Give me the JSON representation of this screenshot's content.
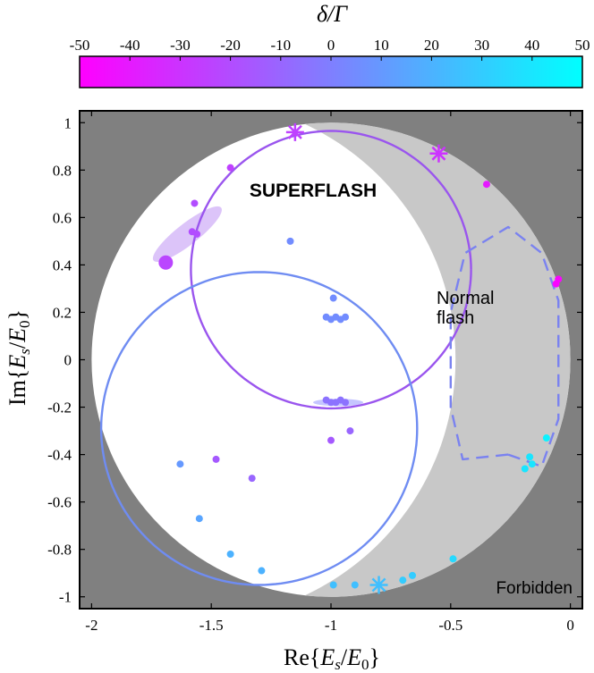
{
  "chart_data": {
    "type": "scatter",
    "xlabel": "Re{E_s/E_0}",
    "ylabel": "Im{E_s/E_0}",
    "xlim": [
      -2.05,
      0.05
    ],
    "ylim": [
      -1.05,
      1.05
    ],
    "xticks": [
      -2,
      -1.5,
      -1,
      -0.5,
      0
    ],
    "xtick_labels": [
      "-2",
      "-1.5",
      "-1",
      "-0.5",
      "0"
    ],
    "yticks": [
      1,
      0.8,
      0.6,
      0.4,
      0.2,
      0,
      -0.2,
      -0.4,
      -0.6,
      -0.8,
      -1
    ],
    "ytick_labels": [
      "1",
      "0.8",
      "0.6",
      "0.4",
      "0.2",
      "0",
      "-0.2",
      "-0.4",
      "-0.6",
      "-0.8",
      "-1"
    ],
    "colorbar": {
      "label": "δ/Γ",
      "ticks": [
        -50,
        -40,
        -30,
        -20,
        -10,
        0,
        10,
        20,
        30,
        40,
        50
      ],
      "tick_labels": [
        "-50",
        "-40",
        "-30",
        "-20",
        "-10",
        "0",
        "10",
        "20",
        "30",
        "40",
        "50"
      ],
      "colors": [
        "#ff00ff",
        "#7f7fff",
        "#00ffff"
      ]
    },
    "regions": [
      {
        "name": "Forbidden",
        "label": "Forbidden",
        "color": "#808080"
      },
      {
        "name": "Normal flash",
        "label_line1": "Normal",
        "label_line2": "flash",
        "color": "#c8c8c8"
      },
      {
        "name": "SUPERFLASH",
        "label": "SUPERFLASH",
        "color": "#ffffff"
      }
    ],
    "curves": [
      {
        "name": "purple circle",
        "color": "#9a55ee",
        "center": [
          -1.0,
          0.38
        ],
        "radius": 0.585
      },
      {
        "name": "blue circle",
        "color": "#6f8cf2",
        "center": [
          -1.3,
          -0.29
        ],
        "radius": 0.66
      },
      {
        "name": "dashed loop",
        "color": "#7a82f0",
        "points": [
          [
            -0.26,
            -0.4
          ],
          [
            -0.12,
            -0.45
          ],
          [
            -0.05,
            -0.25
          ],
          [
            -0.05,
            0.25
          ],
          [
            -0.12,
            0.45
          ],
          [
            -0.26,
            0.56
          ],
          [
            -0.44,
            0.45
          ],
          [
            -0.5,
            0.2
          ],
          [
            -0.5,
            -0.2
          ],
          [
            -0.45,
            -0.42
          ],
          [
            -0.26,
            -0.4
          ]
        ]
      }
    ],
    "points": [
      {
        "x": -1.42,
        "y": 0.81,
        "delta": -25
      },
      {
        "x": -1.57,
        "y": 0.66,
        "delta": -20
      },
      {
        "x": -1.58,
        "y": 0.54,
        "delta": -20
      },
      {
        "x": -1.56,
        "y": 0.53,
        "delta": -20
      },
      {
        "x": -1.69,
        "y": 0.41,
        "delta": -23,
        "size": "large"
      },
      {
        "x": -1.17,
        "y": 0.5,
        "delta": 5
      },
      {
        "x": -0.99,
        "y": 0.26,
        "delta": 5
      },
      {
        "x": -1.02,
        "y": 0.18,
        "delta": 5
      },
      {
        "x": -1.0,
        "y": 0.17,
        "delta": 5
      },
      {
        "x": -0.98,
        "y": 0.18,
        "delta": 5
      },
      {
        "x": -0.96,
        "y": 0.17,
        "delta": 5
      },
      {
        "x": -0.94,
        "y": 0.18,
        "delta": 5
      },
      {
        "x": -1.02,
        "y": -0.17,
        "delta": -5
      },
      {
        "x": -1.0,
        "y": -0.18,
        "delta": -5
      },
      {
        "x": -0.98,
        "y": -0.18,
        "delta": -5
      },
      {
        "x": -0.96,
        "y": -0.17,
        "delta": -5
      },
      {
        "x": -0.94,
        "y": -0.18,
        "delta": -5
      },
      {
        "x": -0.92,
        "y": -0.3,
        "delta": -10
      },
      {
        "x": -1.0,
        "y": -0.34,
        "delta": -15
      },
      {
        "x": -1.48,
        "y": -0.42,
        "delta": -15
      },
      {
        "x": -1.33,
        "y": -0.5,
        "delta": -10
      },
      {
        "x": -1.63,
        "y": -0.44,
        "delta": 10
      },
      {
        "x": -1.55,
        "y": -0.67,
        "delta": 15
      },
      {
        "x": -1.42,
        "y": -0.82,
        "delta": 20
      },
      {
        "x": -1.29,
        "y": -0.89,
        "delta": 20
      },
      {
        "x": -0.99,
        "y": -0.95,
        "delta": 25
      },
      {
        "x": -0.9,
        "y": -0.95,
        "delta": 25
      },
      {
        "x": -0.7,
        "y": -0.93,
        "delta": 30
      },
      {
        "x": -0.66,
        "y": -0.91,
        "delta": 30
      },
      {
        "x": -0.49,
        "y": -0.84,
        "delta": 35
      },
      {
        "x": -0.19,
        "y": -0.46,
        "delta": 40
      },
      {
        "x": -0.17,
        "y": -0.41,
        "delta": 40
      },
      {
        "x": -0.16,
        "y": -0.44,
        "delta": 40
      },
      {
        "x": -0.1,
        "y": -0.33,
        "delta": 45
      },
      {
        "x": -0.35,
        "y": 0.74,
        "delta": -40
      },
      {
        "x": -0.05,
        "y": 0.34,
        "delta": -48
      },
      {
        "x": -0.06,
        "y": 0.32,
        "delta": -48
      }
    ],
    "stars": [
      {
        "x": -1.15,
        "y": 0.96,
        "delta": -25
      },
      {
        "x": -0.55,
        "y": 0.87,
        "delta": -30
      },
      {
        "x": -0.8,
        "y": -0.95,
        "delta": 25
      }
    ],
    "annotations": {
      "superflash": "SUPERFLASH",
      "normal_line1": "Normal",
      "normal_line2": "flash",
      "forbidden": "Forbidden"
    }
  }
}
